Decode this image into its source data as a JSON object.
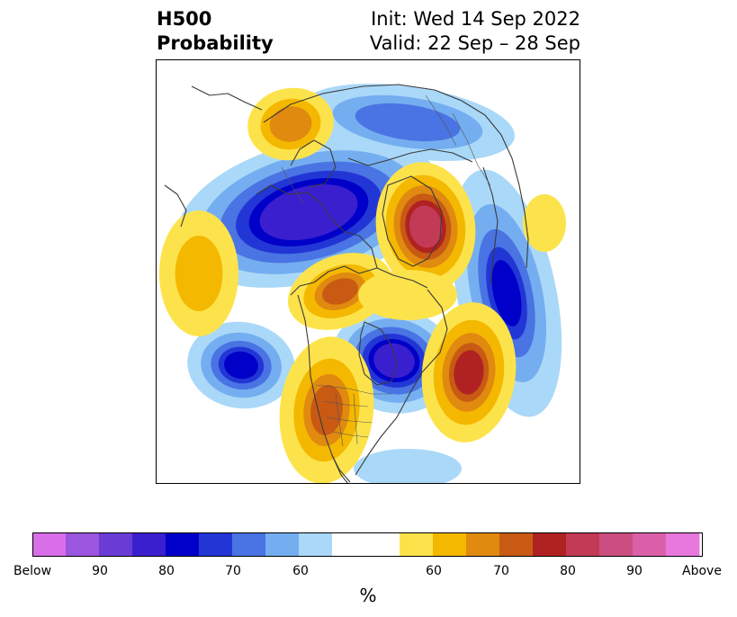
{
  "title": {
    "left_line1": "H500",
    "left_line2": "Probability",
    "right_line1": "Init: Wed 14 Sep 2022",
    "right_line2": "Valid: 22 Sep – 28 Sep"
  },
  "legend": {
    "unit": "%",
    "tick_labels": [
      "Below",
      "90",
      "80",
      "70",
      "60",
      "60",
      "70",
      "80",
      "90",
      "Above"
    ],
    "below_colors": [
      "#d86ee8",
      "#9b55de",
      "#6a3cd6",
      "#3a1fcf",
      "#0000c8",
      "#2236d6",
      "#4a73e3",
      "#74aef0",
      "#aad8f8"
    ],
    "neutral_color": "#ffffff",
    "above_colors": [
      "#fde34b",
      "#f4b800",
      "#e08a10",
      "#c85a14",
      "#b02222",
      "#c23a55",
      "#cc4e80",
      "#da60aa",
      "#e878de"
    ]
  },
  "colors": {
    "coastline": "#3a3a3a",
    "frame": "#000000"
  }
}
